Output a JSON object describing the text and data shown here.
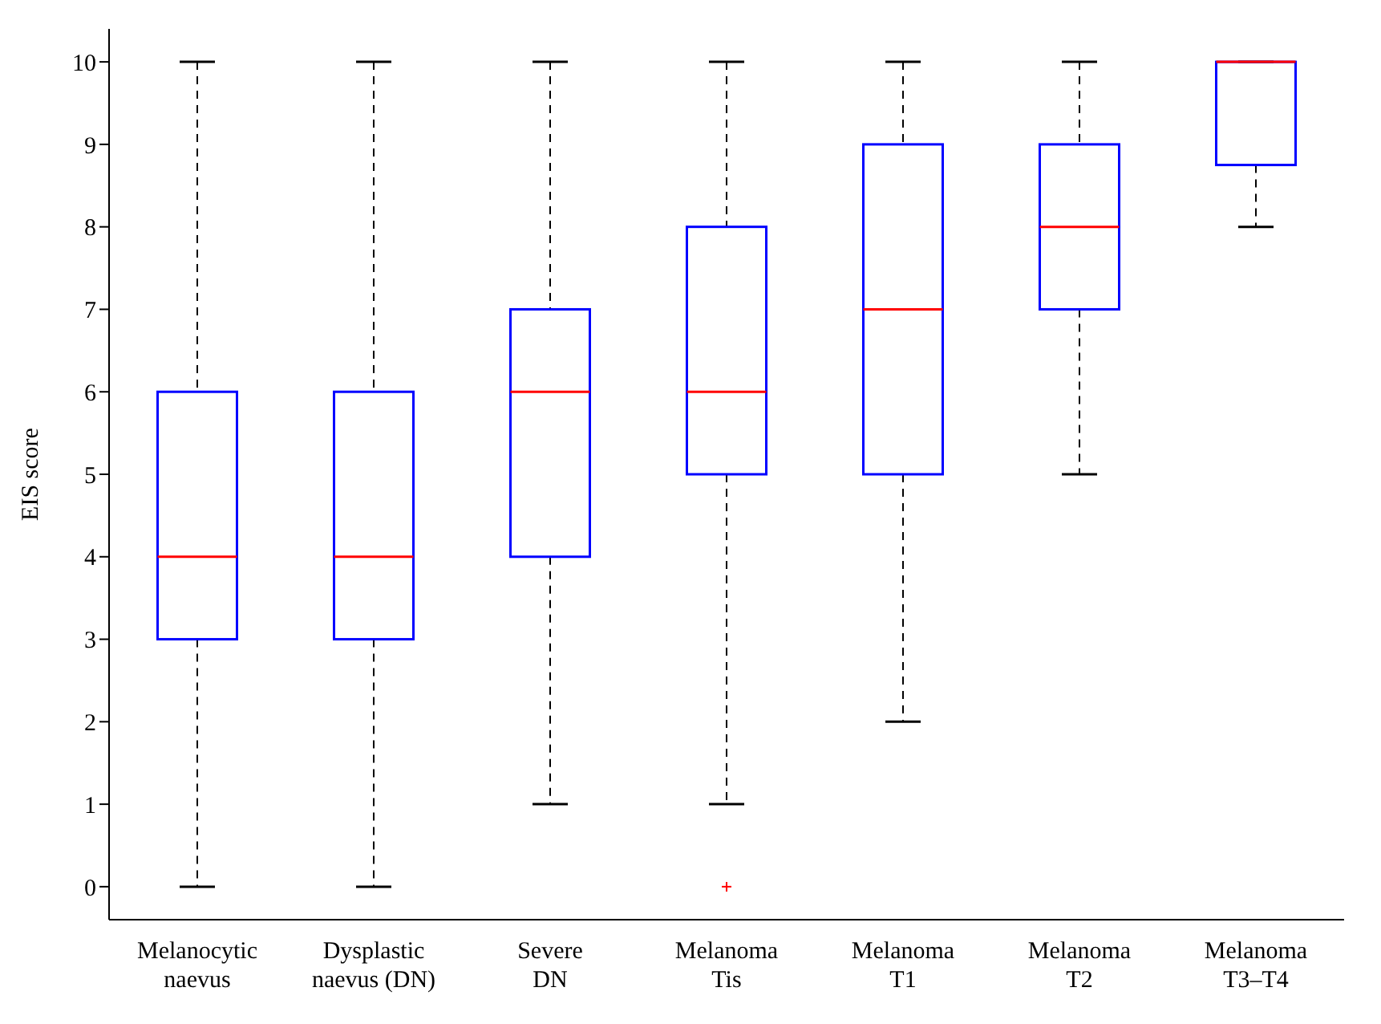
{
  "chart_data": {
    "type": "box",
    "ylabel": "EIS score",
    "categories": [
      "Melanocytic\nnaevus",
      "Dysplastic\nnaevus (DN)",
      "Severe\nDN",
      "Melanoma\nTis",
      "Melanoma\nT1",
      "Melanoma\nT2",
      "Melanoma\nT3–T4"
    ],
    "color": "#0000ff",
    "boxes": [
      {
        "low": 0,
        "q1": 3,
        "median": 4,
        "q3": 6,
        "high": 10
      },
      {
        "low": 0,
        "q1": 3,
        "median": 4,
        "q3": 6,
        "high": 10
      },
      {
        "low": 1,
        "q1": 4,
        "median": 6,
        "q3": 7,
        "high": 10
      },
      {
        "low": 1,
        "q1": 5,
        "median": 6,
        "q3": 8,
        "high": 10,
        "outliers": [
          0
        ]
      },
      {
        "low": 2,
        "q1": 5,
        "median": 7,
        "q3": 9,
        "high": 10
      },
      {
        "low": 5,
        "q1": 7,
        "median": 8,
        "q3": 9,
        "high": 10
      },
      {
        "low": 8,
        "q1": 8.75,
        "median": 10,
        "q3": 10,
        "high": 10
      }
    ],
    "ylim": [
      -0.4,
      10.4
    ],
    "yticks": [
      0,
      1,
      2,
      3,
      4,
      5,
      6,
      7,
      8,
      9,
      10
    ],
    "grid": false,
    "legend": false
  }
}
